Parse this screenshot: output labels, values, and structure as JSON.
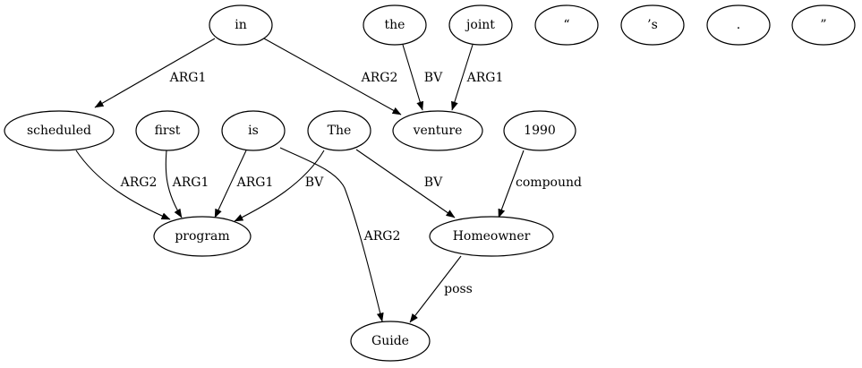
{
  "nodes": {
    "in": "in",
    "the": "the",
    "joint": "joint",
    "open_quote": "“",
    "apos_s": "’s",
    "period": ".",
    "close_quote": "”",
    "scheduled": "scheduled",
    "first": "first",
    "is": "is",
    "The": "The",
    "venture": "venture",
    "n1990": "1990",
    "program": "program",
    "Homeowner": "Homeowner",
    "Guide": "Guide"
  },
  "edges": [
    {
      "from": "in",
      "to": "scheduled",
      "label": "ARG1"
    },
    {
      "from": "in",
      "to": "venture",
      "label": "ARG2"
    },
    {
      "from": "the",
      "to": "venture",
      "label": "BV"
    },
    {
      "from": "joint",
      "to": "venture",
      "label": "ARG1"
    },
    {
      "from": "scheduled",
      "to": "program",
      "label": "ARG2"
    },
    {
      "from": "first",
      "to": "program",
      "label": "ARG1"
    },
    {
      "from": "is",
      "to": "program",
      "label": "ARG1"
    },
    {
      "from": "The",
      "to": "program",
      "label": "BV"
    },
    {
      "from": "is",
      "to": "Guide",
      "label": "ARG2"
    },
    {
      "from": "The",
      "to": "Homeowner",
      "label": "BV"
    },
    {
      "from": "n1990",
      "to": "Homeowner",
      "label": "compound"
    },
    {
      "from": "Homeowner",
      "to": "Guide",
      "label": "poss"
    }
  ]
}
